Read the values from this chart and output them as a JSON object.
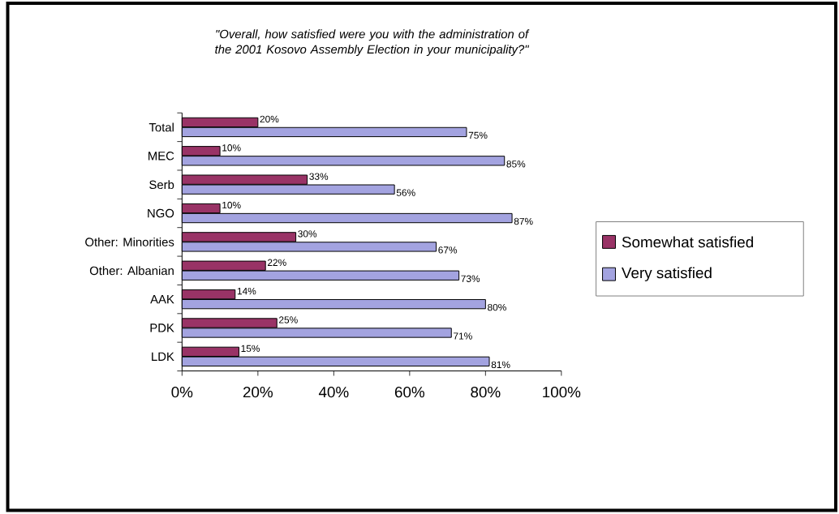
{
  "chart_data": {
    "type": "bar",
    "orientation": "horizontal",
    "title": "\"Overall, how satisfied were you with the administration of the 2001 Kosovo Assembly Election in your municipality?\"",
    "categories": [
      "Total",
      "MEC",
      "Serb",
      "NGO",
      "Other: Minorities",
      "Other: Albanian",
      "AAK",
      "PDK",
      "LDK"
    ],
    "series": [
      {
        "name": "Somewhat satisfied",
        "color": "#993366",
        "values": [
          20,
          10,
          33,
          10,
          30,
          22,
          14,
          25,
          15
        ],
        "value_labels": [
          "20%",
          "10%",
          "33%",
          "10%",
          "30%",
          "22%",
          "14%",
          "25%",
          "15%"
        ]
      },
      {
        "name": "Very satisfied",
        "color": "#a3a3e0",
        "values": [
          75,
          85,
          56,
          87,
          67,
          73,
          80,
          71,
          81
        ],
        "value_labels": [
          "75%",
          "85%",
          "56%",
          "87%",
          "67%",
          "73%",
          "80%",
          "71%",
          "81%"
        ]
      }
    ],
    "xlim": [
      0,
      100
    ],
    "xticks": [
      {
        "value": 0,
        "label": "0%"
      },
      {
        "value": 20,
        "label": "20%"
      },
      {
        "value": 40,
        "label": "40%"
      },
      {
        "value": 60,
        "label": "60%"
      },
      {
        "value": 80,
        "label": "80%"
      },
      {
        "value": 100,
        "label": "100%"
      }
    ],
    "legend": "right"
  }
}
